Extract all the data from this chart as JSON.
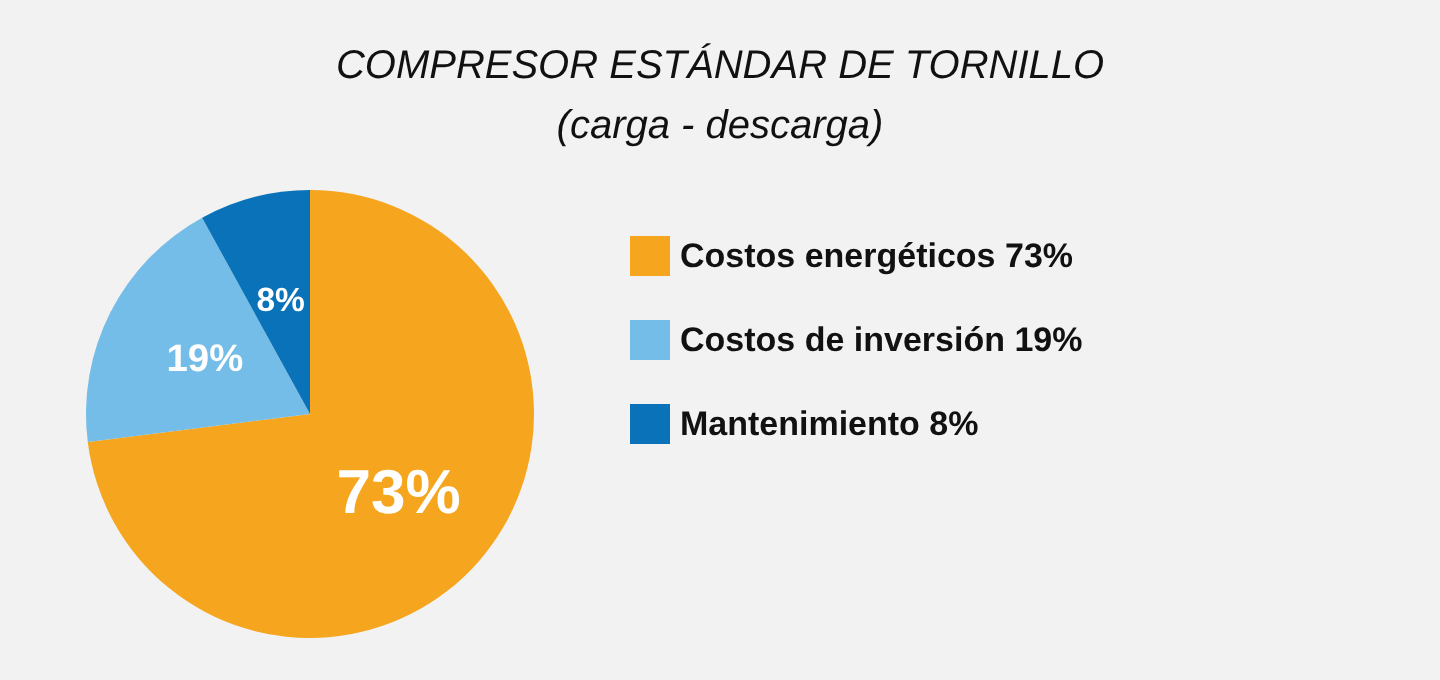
{
  "chart_data": {
    "type": "pie",
    "title": "COMPRESOR ESTÁNDAR DE TORNILLO",
    "subtitle": "(carga - descarga)",
    "categories": [
      "Costos energéticos 73%",
      "Costos de inversión 19%",
      "Mantenimiento 8%"
    ],
    "values": [
      73,
      19,
      8
    ],
    "colors": [
      "#f5a51e",
      "#74bde8",
      "#0a72b9"
    ],
    "value_labels": [
      "73%",
      "19%",
      "8%"
    ],
    "legend": "right"
  }
}
